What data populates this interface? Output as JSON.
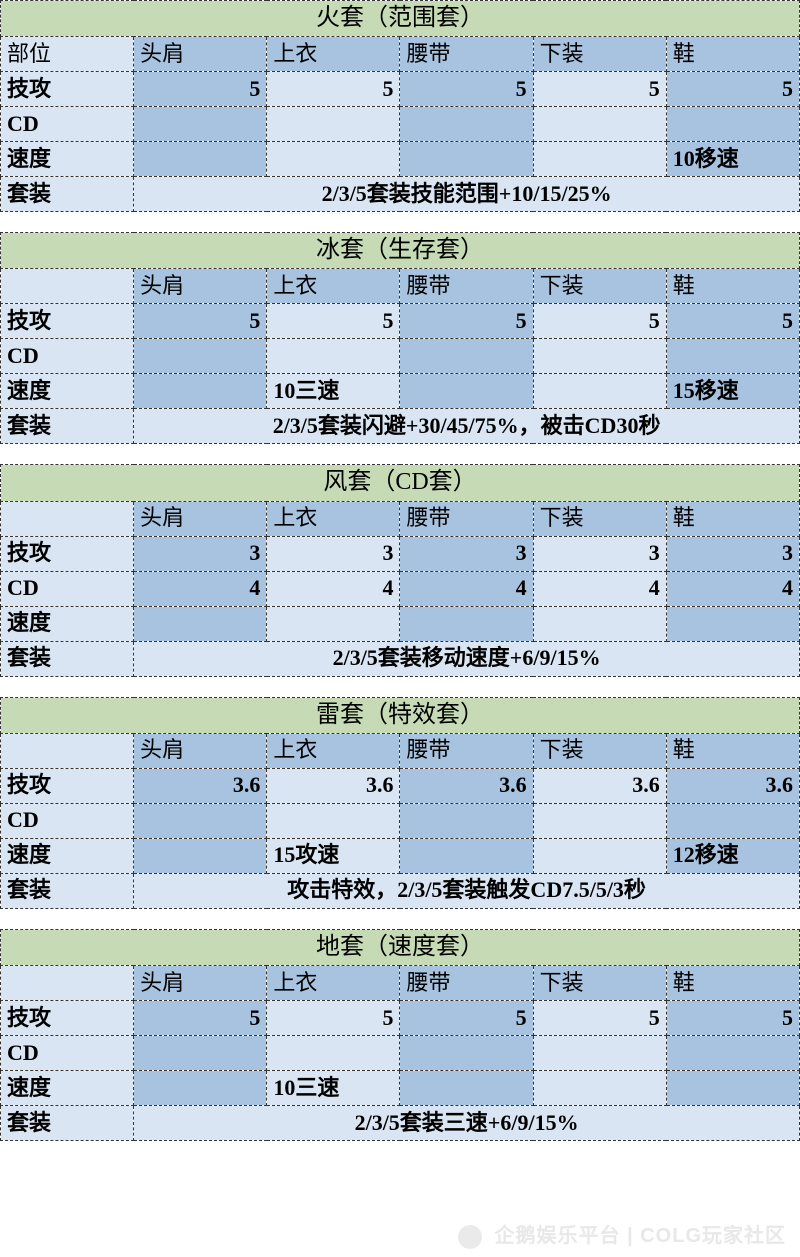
{
  "labels": {
    "part": "部位",
    "atk": "技攻",
    "cd": "CD",
    "speed": "速度",
    "setbonus": "套装"
  },
  "columns": [
    "头肩",
    "上衣",
    "腰带",
    "下装",
    "鞋"
  ],
  "colors": {
    "title_bg": "#c6dbb5",
    "header_bg": "#a8c3e0",
    "light_bg": "#d9e5f3",
    "border": "#333333"
  },
  "sets": [
    {
      "title": "火套（范围套）",
      "first_label": "部位",
      "atk": [
        "5",
        "5",
        "5",
        "5",
        "5"
      ],
      "cd": [
        "",
        "",
        "",
        "",
        ""
      ],
      "speed": [
        "",
        "",
        "",
        "",
        "10移速"
      ],
      "bonus": "2/3/5套装技能范围+10/15/25%",
      "alt": [
        true,
        false,
        true,
        false,
        true
      ]
    },
    {
      "title": "冰套（生存套）",
      "first_label": "",
      "atk": [
        "5",
        "5",
        "5",
        "5",
        "5"
      ],
      "cd": [
        "",
        "",
        "",
        "",
        ""
      ],
      "speed": [
        "",
        "10三速",
        "",
        "",
        "15移速"
      ],
      "bonus": "2/3/5套装闪避+30/45/75%，被击CD30秒",
      "alt": [
        true,
        false,
        true,
        false,
        true
      ]
    },
    {
      "title": "风套（CD套）",
      "first_label": "",
      "atk": [
        "3",
        "3",
        "3",
        "3",
        "3"
      ],
      "cd": [
        "4",
        "4",
        "4",
        "4",
        "4"
      ],
      "speed": [
        "",
        "",
        "",
        "",
        ""
      ],
      "bonus": "2/3/5套装移动速度+6/9/15%",
      "alt": [
        true,
        false,
        true,
        false,
        true
      ]
    },
    {
      "title": "雷套（特效套）",
      "first_label": "",
      "atk": [
        "3.6",
        "3.6",
        "3.6",
        "3.6",
        "3.6"
      ],
      "cd": [
        "",
        "",
        "",
        "",
        ""
      ],
      "speed": [
        "",
        "15攻速",
        "",
        "",
        "12移速"
      ],
      "bonus": "攻击特效，2/3/5套装触发CD7.5/5/3秒",
      "alt": [
        true,
        false,
        true,
        false,
        true
      ]
    },
    {
      "title": "地套（速度套）",
      "first_label": "",
      "atk": [
        "5",
        "5",
        "5",
        "5",
        "5"
      ],
      "cd": [
        "",
        "",
        "",
        "",
        ""
      ],
      "speed": [
        "",
        "10三速",
        "",
        "",
        ""
      ],
      "bonus": "2/3/5套装三速+6/9/15%",
      "alt": [
        true,
        false,
        true,
        false,
        true
      ]
    }
  ],
  "watermark": "企鹅娱乐平台 | COLG玩家社区"
}
